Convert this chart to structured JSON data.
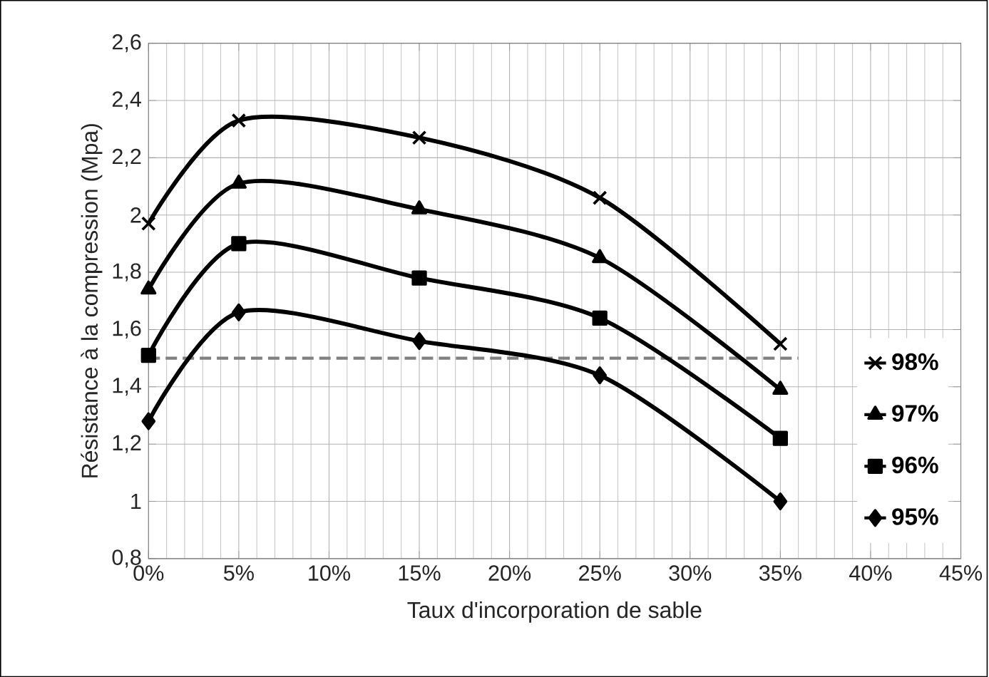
{
  "chart_data": {
    "type": "line",
    "xlabel": "Taux d'incorporation de sable",
    "ylabel": "Résistance à la compression (Mpa)",
    "x": [
      0,
      5,
      15,
      25,
      35
    ],
    "series": [
      {
        "name": "98%",
        "color": "#000000",
        "marker": "cross",
        "values": [
          1.97,
          2.33,
          2.27,
          2.06,
          1.55
        ]
      },
      {
        "name": "97%",
        "color": "#000000",
        "marker": "triangle",
        "values": [
          1.74,
          2.11,
          2.02,
          1.85,
          1.39
        ]
      },
      {
        "name": "96%",
        "color": "#000000",
        "marker": "square",
        "values": [
          1.51,
          1.9,
          1.78,
          1.64,
          1.22
        ]
      },
      {
        "name": "95%",
        "color": "#000000",
        "marker": "diamond",
        "values": [
          1.28,
          1.66,
          1.56,
          1.44,
          1.0
        ]
      }
    ],
    "xlim": [
      0,
      45
    ],
    "ylim": [
      0.8,
      2.6
    ],
    "xticks": [
      {
        "value": 0,
        "label": "0%"
      },
      {
        "value": 5,
        "label": "5%"
      },
      {
        "value": 10,
        "label": "10%"
      },
      {
        "value": 15,
        "label": "15%"
      },
      {
        "value": 20,
        "label": "20%"
      },
      {
        "value": 25,
        "label": "25%"
      },
      {
        "value": 30,
        "label": "30%"
      },
      {
        "value": 35,
        "label": "35%"
      },
      {
        "value": 40,
        "label": "40%"
      },
      {
        "value": 45,
        "label": "45%"
      }
    ],
    "yticks": [
      {
        "value": 0.8,
        "label": "0,8"
      },
      {
        "value": 1.0,
        "label": "1"
      },
      {
        "value": 1.2,
        "label": "1,2"
      },
      {
        "value": 1.4,
        "label": "1,4"
      },
      {
        "value": 1.6,
        "label": "1,6"
      },
      {
        "value": 1.8,
        "label": "1,8"
      },
      {
        "value": 2.0,
        "label": "2"
      },
      {
        "value": 2.2,
        "label": "2,2"
      },
      {
        "value": 2.4,
        "label": "2,4"
      },
      {
        "value": 2.6,
        "label": "2,6"
      }
    ],
    "ref_lines": [
      {
        "axis": "y",
        "value": 1.5,
        "color": "#808080",
        "line_style": "dashed"
      }
    ],
    "grid": true,
    "legend": "right",
    "line_style": "solid"
  }
}
